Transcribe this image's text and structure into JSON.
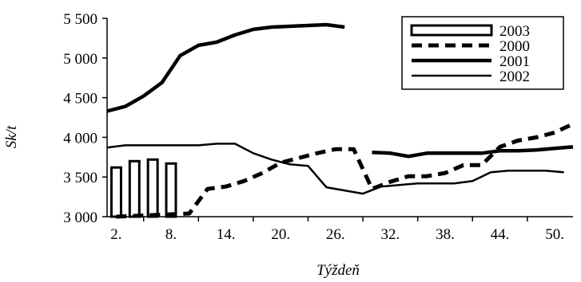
{
  "chart_data": {
    "type": "line",
    "xlabel": "Týždeň",
    "ylabel": "Sk/t",
    "xlim": [
      1,
      52
    ],
    "ylim": [
      3000,
      5500
    ],
    "yticks": [
      3000,
      3500,
      4000,
      4500,
      5000,
      5500
    ],
    "ytick_labels": [
      "3 000",
      "3 500",
      "4 000",
      "4 500",
      "5 000",
      "5 500"
    ],
    "xticks": [
      2,
      8,
      14,
      20,
      26,
      32,
      38,
      44,
      50
    ],
    "xtick_labels": [
      "2.",
      "8.",
      "14.",
      "20.",
      "26.",
      "32.",
      "38.",
      "44.",
      "50."
    ],
    "grid": false,
    "legend_position": "top-right",
    "series": [
      {
        "name": "2003",
        "kind": "bar",
        "x": [
          2,
          4,
          6,
          8
        ],
        "values": [
          3620,
          3700,
          3720,
          3670
        ]
      },
      {
        "name": "2000",
        "kind": "line",
        "style": "dashed",
        "x": [
          2,
          4,
          6,
          8,
          10,
          12,
          14,
          16,
          18,
          20,
          22,
          24,
          26,
          28,
          30,
          32,
          34,
          36,
          38,
          40,
          42,
          44,
          46,
          48,
          50,
          52
        ],
        "values": [
          3000,
          3010,
          3020,
          3030,
          3040,
          3350,
          3380,
          3450,
          3550,
          3680,
          3740,
          3800,
          3850,
          3850,
          3350,
          3440,
          3510,
          3510,
          3550,
          3650,
          3650,
          3880,
          3960,
          4000,
          4060,
          4170
        ]
      },
      {
        "name": "2001",
        "kind": "line",
        "style": "thick",
        "x": [
          1,
          3,
          5,
          7,
          9,
          11,
          13,
          15,
          17,
          19,
          21,
          23,
          25,
          27
        ],
        "values": [
          4330,
          4390,
          4520,
          4690,
          5030,
          5160,
          5200,
          5290,
          5360,
          5390,
          5400,
          5410,
          5420,
          5390
        ]
      },
      {
        "name": "2002",
        "kind": "line",
        "style": "thin",
        "x": [
          1,
          3,
          5,
          7,
          9,
          11,
          13,
          15,
          17,
          19,
          21,
          23,
          25,
          27,
          29,
          31,
          33,
          35,
          37,
          39,
          41,
          43,
          45,
          47,
          49,
          51
        ],
        "values": [
          3870,
          3900,
          3900,
          3900,
          3900,
          3900,
          3920,
          3920,
          3800,
          3720,
          3660,
          3640,
          3370,
          3330,
          3290,
          3380,
          3400,
          3420,
          3420,
          3420,
          3450,
          3560,
          3580,
          3580,
          3580,
          3560
        ]
      },
      {
        "name": "",
        "kind": "line",
        "style": "thick",
        "x": [
          30,
          32,
          34,
          36,
          38,
          40,
          42,
          44,
          46,
          48,
          50,
          52
        ],
        "values": [
          3810,
          3800,
          3760,
          3800,
          3800,
          3800,
          3800,
          3830,
          3830,
          3840,
          3860,
          3880
        ]
      }
    ]
  }
}
